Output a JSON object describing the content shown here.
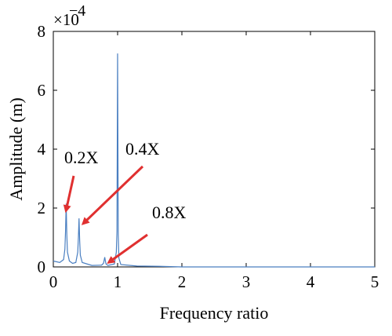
{
  "chart_data": {
    "type": "line",
    "title": "",
    "xlabel": "Frequency ratio",
    "ylabel": "Amplitude (m)",
    "xlim": [
      0,
      5
    ],
    "ylim": [
      0,
      8
    ],
    "y_scale_note": "×10",
    "y_scale_exponent": "−4",
    "x_ticks": [
      "0",
      "1",
      "2",
      "3",
      "4",
      "5"
    ],
    "y_ticks": [
      "0",
      "2",
      "4",
      "6",
      "8"
    ],
    "grid": false,
    "line_color": "#4a7fc1",
    "arrow_color": "#e03030",
    "series": [
      {
        "x": [
          0,
          0.1,
          0.16,
          0.18,
          0.19,
          0.2,
          0.21,
          0.22,
          0.25,
          0.3,
          0.35,
          0.38,
          0.39,
          0.4,
          0.41,
          0.42,
          0.45,
          0.6,
          0.75,
          0.78,
          0.79,
          0.8,
          0.81,
          0.82,
          0.85,
          0.95,
          0.98,
          0.99,
          1.0,
          1.01,
          1.02,
          1.05,
          1.3,
          1.65,
          2.0,
          5.0
        ],
        "values": [
          0.2,
          0.15,
          0.25,
          0.6,
          1.2,
          2.15,
          1.1,
          0.5,
          0.2,
          0.12,
          0.15,
          0.5,
          1.0,
          1.65,
          0.9,
          0.4,
          0.15,
          0.05,
          0.06,
          0.12,
          0.22,
          0.33,
          0.2,
          0.1,
          0.05,
          0.1,
          0.5,
          1.2,
          7.25,
          1.1,
          0.3,
          0.08,
          0.03,
          0.02,
          0.0,
          0.0
        ]
      }
    ],
    "annotations": [
      {
        "text": "0.2X",
        "target_x": 0.2,
        "target_y": 2.15
      },
      {
        "text": "0.4X",
        "target_x": 0.4,
        "target_y": 1.65
      },
      {
        "text": "0.8X",
        "target_x": 0.8,
        "target_y": 0.33
      }
    ]
  }
}
